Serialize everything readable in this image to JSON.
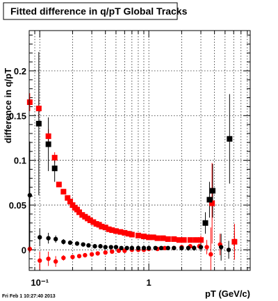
{
  "title": "Fitted difference in q/pT  Global Tracks",
  "footer": "Fri Feb  1 10:27:40 2013",
  "chart_data": {
    "type": "scatter",
    "title": "Fitted difference in q/pT  Global Tracks",
    "xlabel": "pT (GeV/c)",
    "ylabel": "difference in q/pT",
    "x_scale": "log",
    "xlim": [
      0.08,
      8.5
    ],
    "ylim": [
      -0.023,
      0.245
    ],
    "grid": true,
    "y_ticks": [
      {
        "value": 0,
        "label": "0"
      },
      {
        "value": 0.05,
        "label": "0.05"
      },
      {
        "value": 0.1,
        "label": "0.1"
      },
      {
        "value": 0.15,
        "label": "0.15"
      },
      {
        "value": 0.2,
        "label": "0.2"
      }
    ],
    "x_ticks": [
      {
        "value": 0.1,
        "label": "10⁻¹"
      },
      {
        "value": 1,
        "label": "1"
      }
    ],
    "series": [
      {
        "color": "#ff0000",
        "marker": "square",
        "points": [
          [
            0.081,
            0.165
          ],
          [
            0.098,
            0.158
          ],
          [
            0.12,
            0.127
          ],
          [
            0.137,
            0.103
          ],
          [
            0.15,
            0.073
          ],
          [
            0.165,
            0.065
          ],
          [
            0.18,
            0.058
          ],
          [
            0.19,
            0.054
          ],
          [
            0.2,
            0.05
          ],
          [
            0.21,
            0.047
          ],
          [
            0.22,
            0.045
          ],
          [
            0.23,
            0.042
          ],
          [
            0.245,
            0.039
          ],
          [
            0.26,
            0.037
          ],
          [
            0.275,
            0.035
          ],
          [
            0.29,
            0.033
          ],
          [
            0.31,
            0.031
          ],
          [
            0.33,
            0.029
          ],
          [
            0.35,
            0.028
          ],
          [
            0.37,
            0.026
          ],
          [
            0.4,
            0.025
          ],
          [
            0.43,
            0.023
          ],
          [
            0.46,
            0.022
          ],
          [
            0.5,
            0.021
          ],
          [
            0.55,
            0.02
          ],
          [
            0.6,
            0.019
          ],
          [
            0.65,
            0.018
          ],
          [
            0.7,
            0.017
          ],
          [
            0.8,
            0.016
          ],
          [
            0.9,
            0.015
          ],
          [
            1.0,
            0.014
          ],
          [
            1.1,
            0.014
          ],
          [
            1.2,
            0.013
          ],
          [
            1.35,
            0.013
          ],
          [
            1.5,
            0.012
          ],
          [
            1.7,
            0.012
          ],
          [
            1.9,
            0.011
          ],
          [
            2.1,
            0.011
          ],
          [
            2.4,
            0.011
          ],
          [
            2.7,
            0.011
          ],
          [
            3.0,
            0.011
          ],
          [
            3.8,
            0.052
          ],
          [
            6.1,
            0.009
          ]
        ],
        "errors": [
          0.01,
          0.01,
          0.008,
          0.006,
          0.003,
          0.002,
          0.002,
          0.002,
          0.002,
          0.002,
          0.002,
          0.002,
          0.002,
          0.002,
          0.002,
          0.002,
          0.002,
          0.002,
          0.002,
          0.002,
          0.002,
          0.002,
          0.002,
          0.002,
          0.002,
          0.002,
          0.002,
          0.002,
          0.002,
          0.002,
          0.002,
          0.002,
          0.002,
          0.002,
          0.002,
          0.002,
          0.002,
          0.002,
          0.002,
          0.003,
          0.005,
          0.045,
          0.02
        ]
      },
      {
        "color": "#ff0000",
        "marker": "circle",
        "points": [
          [
            0.081,
            0.001
          ],
          [
            0.1,
            -0.012
          ],
          [
            0.12,
            -0.01
          ],
          [
            0.14,
            -0.013
          ],
          [
            0.165,
            -0.009
          ],
          [
            0.2,
            -0.008
          ],
          [
            0.23,
            -0.007
          ],
          [
            0.26,
            -0.006
          ],
          [
            0.3,
            -0.005
          ],
          [
            0.34,
            -0.004
          ],
          [
            0.4,
            -0.003
          ],
          [
            0.46,
            -0.002
          ],
          [
            0.53,
            -0.001
          ],
          [
            0.6,
            -0.001
          ],
          [
            0.7,
            0.0
          ],
          [
            0.8,
            0.0
          ],
          [
            0.9,
            0.0
          ],
          [
            1.0,
            0.001
          ],
          [
            1.2,
            0.001
          ],
          [
            1.4,
            0.002
          ],
          [
            1.7,
            0.002
          ],
          [
            2.0,
            0.003
          ],
          [
            2.4,
            0.004
          ],
          [
            2.9,
            0.004
          ],
          [
            3.4,
            0.003
          ],
          [
            3.7,
            -0.005
          ],
          [
            4.5,
            0.006
          ],
          [
            6.1,
            0.01
          ]
        ],
        "errors": [
          0.004,
          0.01,
          0.008,
          0.006,
          0.003,
          0.002,
          0.002,
          0.002,
          0.002,
          0.002,
          0.002,
          0.002,
          0.002,
          0.002,
          0.002,
          0.002,
          0.002,
          0.002,
          0.002,
          0.002,
          0.002,
          0.002,
          0.002,
          0.003,
          0.008,
          0.03,
          0.012,
          0.01
        ]
      },
      {
        "color": "#000000",
        "marker": "square",
        "points": [
          [
            0.098,
            0.141
          ],
          [
            0.12,
            0.118
          ],
          [
            0.137,
            0.091
          ],
          [
            3.3,
            0.03
          ],
          [
            3.6,
            0.056
          ],
          [
            3.85,
            0.066
          ],
          [
            5.5,
            0.124
          ]
        ],
        "errors": [
          0.08,
          0.03,
          0.015,
          0.012,
          0.02,
          0.03,
          0.05
        ]
      },
      {
        "color": "#000000",
        "marker": "circle",
        "points": [
          [
            0.081,
            0.061
          ],
          [
            0.1,
            0.014
          ],
          [
            0.12,
            0.013
          ],
          [
            0.14,
            0.012
          ],
          [
            0.165,
            0.009
          ],
          [
            0.19,
            0.008
          ],
          [
            0.22,
            0.007
          ],
          [
            0.25,
            0.006
          ],
          [
            0.28,
            0.005
          ],
          [
            0.32,
            0.004
          ],
          [
            0.36,
            0.004
          ],
          [
            0.4,
            0.003
          ],
          [
            0.45,
            0.003
          ],
          [
            0.5,
            0.003
          ],
          [
            0.56,
            0.002
          ],
          [
            0.63,
            0.002
          ],
          [
            0.7,
            0.002
          ],
          [
            0.8,
            0.002
          ],
          [
            0.9,
            0.002
          ],
          [
            1.0,
            0.002
          ],
          [
            1.15,
            0.002
          ],
          [
            1.3,
            0.002
          ],
          [
            1.5,
            0.002
          ],
          [
            1.7,
            0.002
          ],
          [
            2.0,
            0.002
          ],
          [
            2.3,
            0.002
          ],
          [
            2.6,
            0.002
          ],
          [
            3.0,
            0.003
          ],
          [
            4.6,
            0.003
          ],
          [
            5.4,
            0.0
          ]
        ],
        "errors": [
          0.06,
          0.01,
          0.006,
          0.004,
          0.003,
          0.002,
          0.002,
          0.002,
          0.002,
          0.002,
          0.002,
          0.002,
          0.002,
          0.002,
          0.002,
          0.002,
          0.002,
          0.002,
          0.002,
          0.002,
          0.002,
          0.002,
          0.002,
          0.002,
          0.002,
          0.003,
          0.003,
          0.005,
          0.015,
          0.01
        ]
      }
    ]
  }
}
